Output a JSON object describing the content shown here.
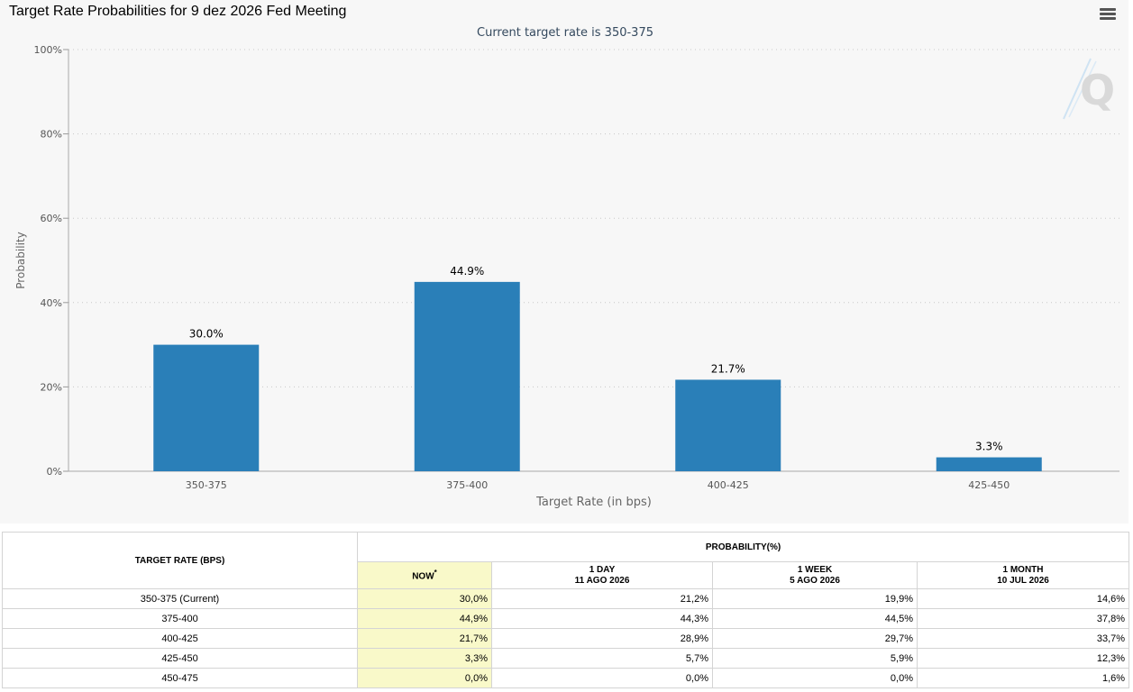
{
  "title": "Target Rate Probabilities for 9 dez 2026 Fed Meeting",
  "subtitle": "Current target rate is 350-375",
  "menu_icon": "hamburger-menu-icon",
  "watermark_icon": "quikstrike-q-logo-icon",
  "colors": {
    "bar": "#2a7fb8",
    "now_column": "#f9f9c9",
    "subtitle": "#34495e"
  },
  "chart_data": {
    "type": "bar",
    "categories": [
      "350-375",
      "375-400",
      "400-425",
      "425-450"
    ],
    "values": [
      30.0,
      44.9,
      21.7,
      3.3
    ],
    "data_labels": [
      "30.0%",
      "44.9%",
      "21.7%",
      "3.3%"
    ],
    "xlabel": "Target Rate (in bps)",
    "ylabel": "Probability",
    "ylim": [
      0,
      100
    ],
    "yticks": [
      0,
      20,
      40,
      60,
      80,
      100
    ],
    "ytick_labels": [
      "0%",
      "20%",
      "40%",
      "60%",
      "80%",
      "100%"
    ],
    "grid": true,
    "legend": "none"
  },
  "table": {
    "rate_header": "TARGET RATE (BPS)",
    "prob_header": "PROBABILITY(%)",
    "columns": [
      {
        "line1": "NOW",
        "line2": "",
        "mark": "*"
      },
      {
        "line1": "1 DAY",
        "line2": "11 AGO 2026"
      },
      {
        "line1": "1 WEEK",
        "line2": "5 AGO 2026"
      },
      {
        "line1": "1 MONTH",
        "line2": "10 JUL 2026"
      }
    ],
    "rows": [
      {
        "rate": "350-375 (Current)",
        "values": [
          "30,0%",
          "21,2%",
          "19,9%",
          "14,6%"
        ]
      },
      {
        "rate": "375-400",
        "values": [
          "44,9%",
          "44,3%",
          "44,5%",
          "37,8%"
        ]
      },
      {
        "rate": "400-425",
        "values": [
          "21,7%",
          "28,9%",
          "29,7%",
          "33,7%"
        ]
      },
      {
        "rate": "425-450",
        "values": [
          "3,3%",
          "5,7%",
          "5,9%",
          "12,3%"
        ]
      },
      {
        "rate": "450-475",
        "values": [
          "0,0%",
          "0,0%",
          "0,0%",
          "1,6%"
        ]
      }
    ]
  }
}
